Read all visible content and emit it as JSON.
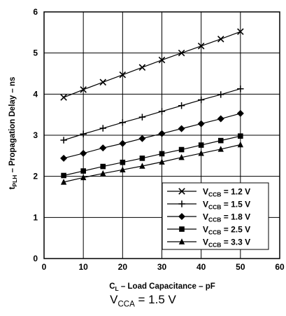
{
  "chart_data": {
    "type": "line",
    "xlabel": {
      "main": "C",
      "sub": "L",
      "rest": " – Load Capacitance – pF"
    },
    "ylabel": {
      "main": "t",
      "sub": "PLH",
      "rest": " – Propagation Delay – ns"
    },
    "xlim": [
      0,
      60
    ],
    "ylim": [
      0,
      6
    ],
    "xticks": [
      0,
      10,
      20,
      30,
      40,
      50,
      60
    ],
    "yticks": [
      0,
      1,
      2,
      3,
      4,
      5,
      6
    ],
    "grid": true,
    "legend_position": "bottom-right",
    "x": [
      5,
      10,
      15,
      20,
      25,
      30,
      35,
      40,
      45,
      50
    ],
    "series": [
      {
        "name": {
          "main": "V",
          "sub": "CCB",
          "rest": " = 1.2 V"
        },
        "marker": "x",
        "values": [
          3.92,
          4.11,
          4.29,
          4.47,
          4.65,
          4.83,
          5.0,
          5.17,
          5.34,
          5.52
        ]
      },
      {
        "name": {
          "main": "V",
          "sub": "CCB",
          "rest": " = 1.5 V"
        },
        "marker": "plus",
        "values": [
          2.88,
          3.03,
          3.17,
          3.31,
          3.44,
          3.58,
          3.72,
          3.86,
          3.99,
          4.13
        ]
      },
      {
        "name": {
          "main": "V",
          "sub": "CCB",
          "rest": " = 1.8 V"
        },
        "marker": "diamond",
        "values": [
          2.44,
          2.56,
          2.69,
          2.8,
          2.92,
          3.04,
          3.16,
          3.28,
          3.4,
          3.53
        ]
      },
      {
        "name": {
          "main": "V",
          "sub": "CCB",
          "rest": " = 2.5 V"
        },
        "marker": "square",
        "values": [
          2.02,
          2.13,
          2.24,
          2.34,
          2.44,
          2.55,
          2.65,
          2.76,
          2.87,
          2.98
        ]
      },
      {
        "name": {
          "main": "V",
          "sub": "CCB",
          "rest": " = 3.3 V"
        },
        "marker": "triangle",
        "values": [
          1.86,
          1.97,
          2.07,
          2.16,
          2.25,
          2.35,
          2.46,
          2.56,
          2.66,
          2.77
        ]
      }
    ],
    "colors": {
      "line": "#000000",
      "background": "#ffffff",
      "grid": "#000000"
    }
  },
  "caption": {
    "main": "V",
    "sub": "CCA",
    "rest": " = 1.5 V"
  }
}
